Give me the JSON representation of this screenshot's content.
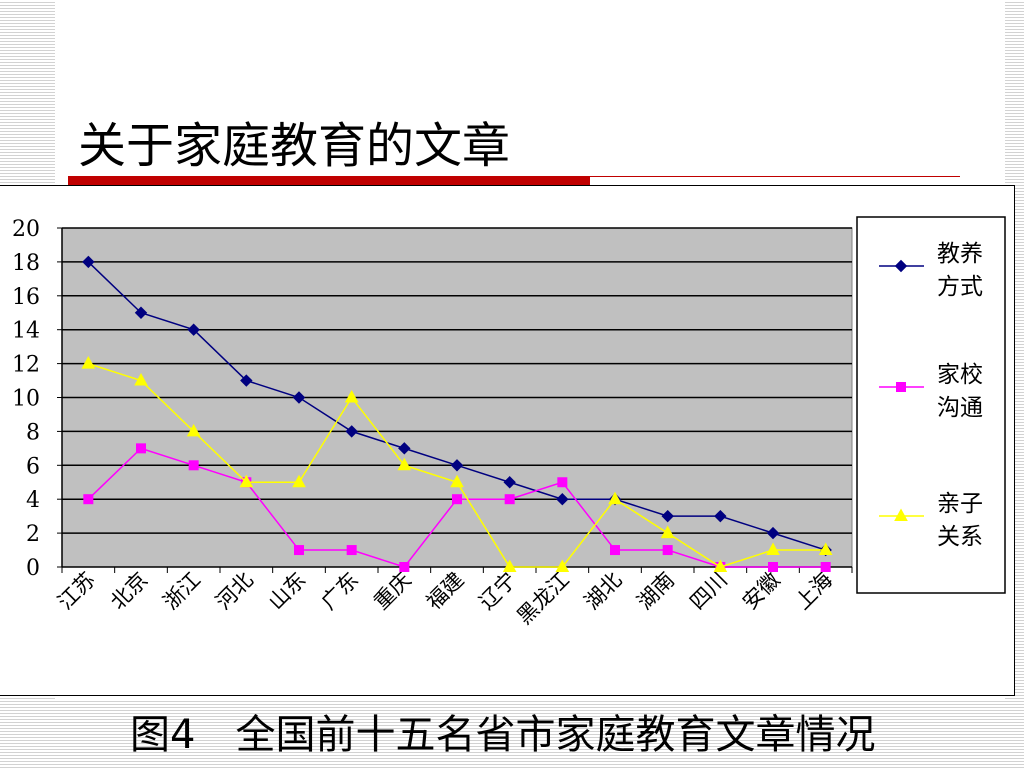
{
  "slide": {
    "title": "关于家庭教育的文章",
    "caption": "图4　全国前十五名省市家庭教育文章情况"
  },
  "chart_data": {
    "type": "line",
    "categories": [
      "江苏",
      "北京",
      "浙江",
      "河北",
      "山东",
      "广东",
      "重庆",
      "福建",
      "辽宁",
      "黑龙江",
      "湖北",
      "湖南",
      "四川",
      "安徽",
      "上海"
    ],
    "series": [
      {
        "name": "教养方式",
        "name_lines": [
          "教养",
          "方式"
        ],
        "color": "#000080",
        "marker": "diamond",
        "values": [
          18,
          15,
          14,
          11,
          10,
          8,
          7,
          6,
          5,
          4,
          4,
          3,
          3,
          2,
          1
        ]
      },
      {
        "name": "家校沟通",
        "name_lines": [
          "家校",
          "沟通"
        ],
        "color": "#ff00ff",
        "marker": "square",
        "values": [
          4,
          7,
          6,
          5,
          1,
          1,
          0,
          4,
          4,
          5,
          1,
          1,
          0,
          0,
          0
        ]
      },
      {
        "name": "亲子关系",
        "name_lines": [
          "亲子",
          "关系"
        ],
        "color": "#ffff00",
        "marker": "triangle",
        "values": [
          12,
          11,
          8,
          5,
          5,
          10,
          6,
          5,
          0,
          0,
          4,
          2,
          0,
          1,
          1
        ]
      }
    ],
    "ylim": [
      0,
      20
    ],
    "yticks": [
      0,
      2,
      4,
      6,
      8,
      10,
      12,
      14,
      16,
      18,
      20
    ],
    "grid": true,
    "plot_background": "#c0c0c0",
    "legend_position": "right"
  }
}
